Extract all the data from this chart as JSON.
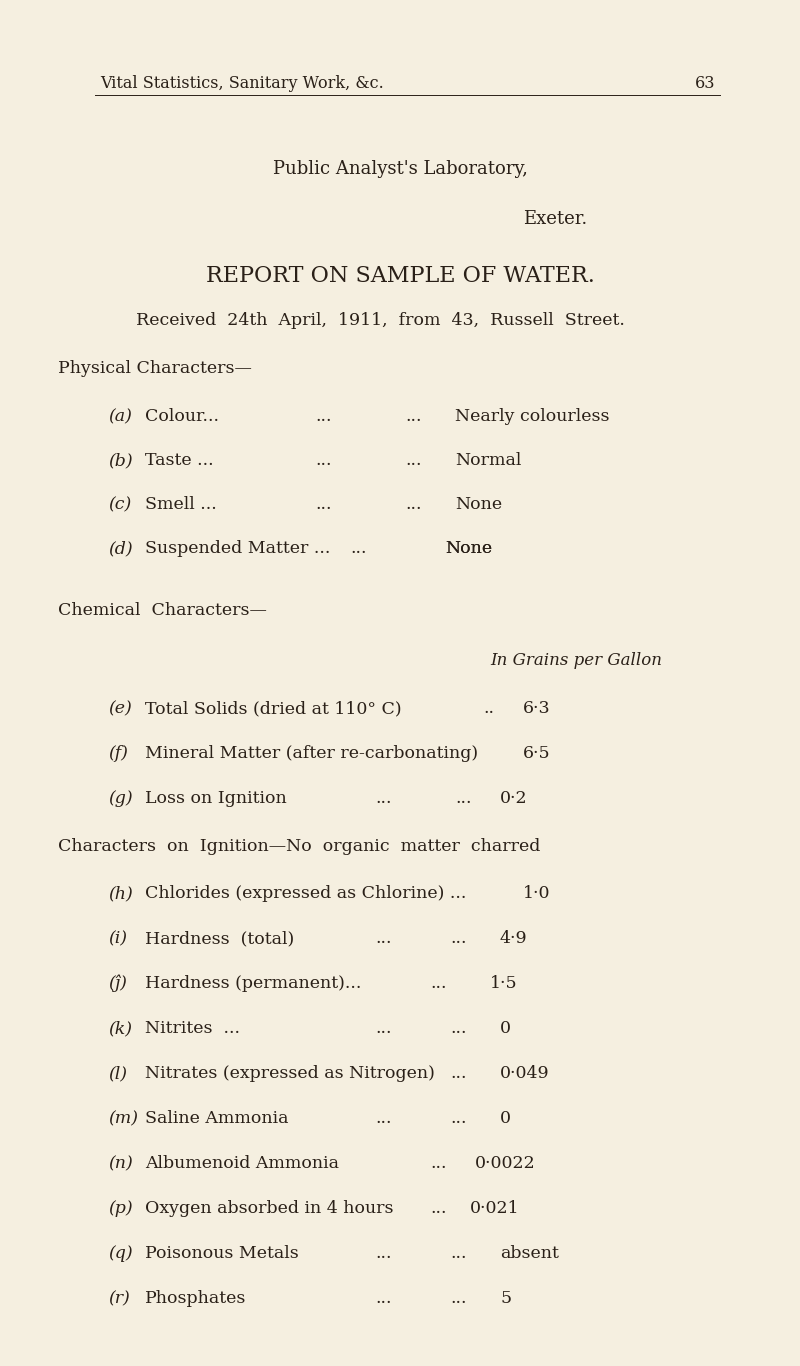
{
  "bg_color": "#f5efe0",
  "text_color": "#2a2018",
  "page_header": "Vital Statistics, Sanitary Work, &c.",
  "page_number": "63",
  "header1": "Public Analyst's Laboratory,",
  "header2": "Exeter.",
  "title": "REPORT ON SAMPLE OF WATER.",
  "received": "Received  24th  April,  1911,  from  43,  Russell  Street.",
  "physical_header": "Physical Characters—",
  "chemical_header": "Chemical  Characters—",
  "grains_label": "In Grains per Gallon",
  "ignition_note": "Characters  on  Ignition—No  organic  matter  charred"
}
